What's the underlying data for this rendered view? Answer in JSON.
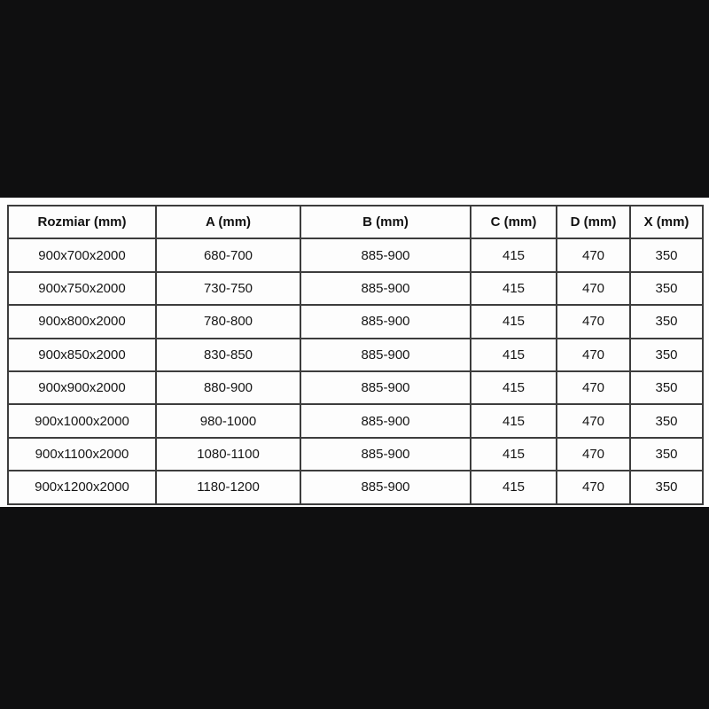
{
  "page": {
    "background_color": "#0f0f10",
    "panel_color": "#fdfdfd",
    "border_color": "#3d3d3d",
    "text_color": "#161616"
  },
  "chart_data": {
    "type": "table",
    "title": "",
    "columns": [
      "Rozmiar (mm)",
      "A (mm)",
      "B (mm)",
      "C (mm)",
      "D (mm)",
      "X (mm)"
    ],
    "rows": [
      [
        "900x700x2000",
        "680-700",
        "885-900",
        "415",
        "470",
        "350"
      ],
      [
        "900x750x2000",
        "730-750",
        "885-900",
        "415",
        "470",
        "350"
      ],
      [
        "900x800x2000",
        "780-800",
        "885-900",
        "415",
        "470",
        "350"
      ],
      [
        "900x850x2000",
        "830-850",
        "885-900",
        "415",
        "470",
        "350"
      ],
      [
        "900x900x2000",
        "880-900",
        "885-900",
        "415",
        "470",
        "350"
      ],
      [
        "900x1000x2000",
        "980-1000",
        "885-900",
        "415",
        "470",
        "350"
      ],
      [
        "900x1100x2000",
        "1080-1100",
        "885-900",
        "415",
        "470",
        "350"
      ],
      [
        "900x1200x2000",
        "1180-1200",
        "885-900",
        "415",
        "470",
        "350"
      ]
    ]
  }
}
